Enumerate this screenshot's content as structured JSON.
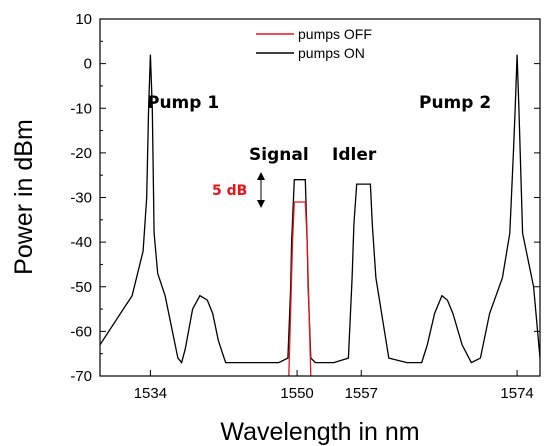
{
  "chart_data": {
    "type": "line",
    "title": "",
    "xlabel": "Wavelength in nm",
    "ylabel": "Power in dBm",
    "xlim": [
      1528.5,
      1576.5
    ],
    "ylim": [
      -70,
      10
    ],
    "x_ticks": [
      1534,
      1550,
      1557,
      1574
    ],
    "x_tick_labels": [
      "1534",
      "1550",
      "1557",
      "1574"
    ],
    "y_ticks": [
      10,
      0,
      -10,
      -20,
      -30,
      -40,
      -50,
      -60,
      -70
    ],
    "y_tick_labels": [
      "10",
      "0",
      "-10",
      "-20",
      "-30",
      "-40",
      "-50",
      "-60",
      "-70"
    ],
    "legend": {
      "placement": "top-center",
      "entries": [
        {
          "label": "pumps OFF",
          "color": "#e8141b"
        },
        {
          "label": "pumps ON",
          "color": "#000000"
        }
      ]
    },
    "series": [
      {
        "name": "pumps ON",
        "color": "#000000",
        "x": [
          1528.5,
          1532.0,
          1533.2,
          1533.6,
          1533.8,
          1534.0,
          1534.2,
          1534.4,
          1534.8,
          1535.6,
          1536.4,
          1537.0,
          1537.4,
          1537.8,
          1538.6,
          1539.4,
          1540.2,
          1540.8,
          1541.4,
          1542.2,
          1543.0,
          1544.0,
          1546.0,
          1548.0,
          1549.0,
          1549.3,
          1549.4,
          1549.7,
          1550.0,
          1550.3,
          1550.6,
          1550.9,
          1551.1,
          1551.2,
          1551.5,
          1552.0,
          1554.0,
          1555.6,
          1556.0,
          1556.2,
          1556.5,
          1556.8,
          1557.1,
          1557.4,
          1557.7,
          1558.0,
          1558.2,
          1558.6,
          1560.0,
          1562.0,
          1563.0,
          1563.6,
          1564.2,
          1565.0,
          1565.8,
          1566.4,
          1567.0,
          1568.0,
          1569.0,
          1570.0,
          1571.0,
          1572.4,
          1573.2,
          1573.6,
          1573.8,
          1574.0,
          1574.2,
          1574.6,
          1575.8,
          1576.5
        ],
        "y": [
          -63,
          -52,
          -42,
          -30,
          -10,
          2,
          -10,
          -38,
          -47,
          -52,
          -60,
          -66,
          -67,
          -64,
          -55,
          -52,
          -53,
          -56,
          -62,
          -67,
          -67,
          -67,
          -67,
          -67,
          -66,
          -50,
          -40,
          -26,
          -26,
          -26,
          -26,
          -26,
          -40,
          -50,
          -66,
          -67,
          -67,
          -66,
          -48,
          -36,
          -27,
          -27,
          -27,
          -27,
          -27,
          -27,
          -36,
          -48,
          -66,
          -67,
          -67,
          -67,
          -63,
          -56,
          -52,
          -53,
          -56,
          -63,
          -67,
          -66,
          -56,
          -48,
          -38,
          -20,
          -10,
          2,
          -10,
          -38,
          -50,
          -66
        ]
      },
      {
        "name": "pumps OFF",
        "color": "#e8141b",
        "x": [
          1549.1,
          1549.3,
          1549.5,
          1549.7,
          1550.0,
          1550.3,
          1550.6,
          1550.9,
          1551.1,
          1551.3,
          1551.5
        ],
        "y": [
          -70,
          -55,
          -40,
          -31,
          -31,
          -31,
          -31,
          -31,
          -40,
          -55,
          -70
        ]
      }
    ],
    "annotations": [
      "Pump 1",
      "Pump 2",
      "Signal",
      "Idler",
      "5 dB"
    ]
  }
}
